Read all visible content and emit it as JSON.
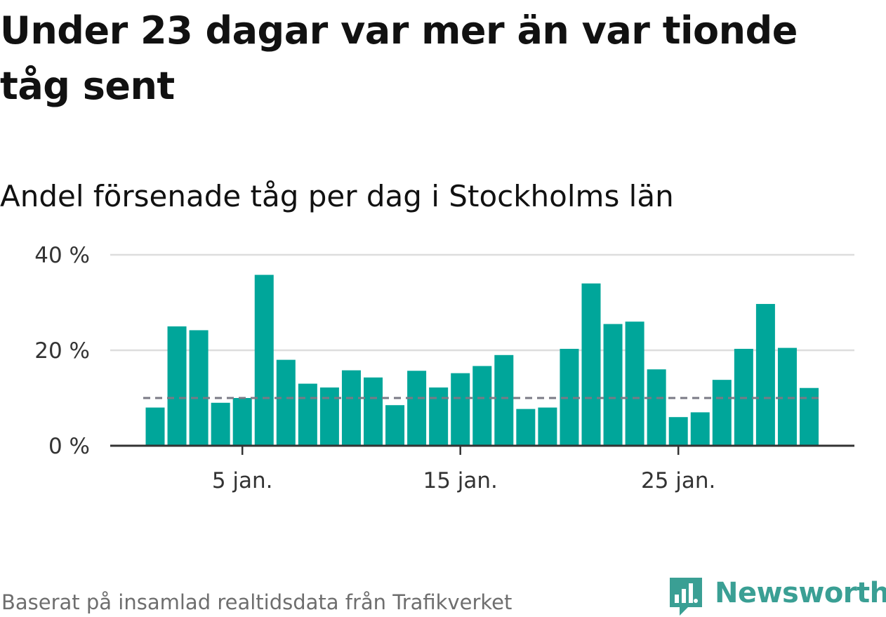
{
  "title": "Under 23 dagar var mer än var tionde tåg sent",
  "subtitle": "Andel försenade tåg per dag i Stockholms län",
  "footer": "Baserat på insamlad realtidsdata från Trafikverket",
  "brand": {
    "name": "Newsworthy",
    "logo_icon": "chart-speech-bubble-icon",
    "color": "#3a9f94"
  },
  "colors": {
    "bar": "#00a69a",
    "reference_line": "#7a7a85",
    "grid": "#dddddd",
    "axis": "#333333"
  },
  "chart_data": {
    "type": "bar",
    "title": "Andel försenade tåg per dag i Stockholms län",
    "xlabel": "",
    "ylabel": "",
    "x": [
      1,
      2,
      3,
      4,
      5,
      6,
      7,
      8,
      9,
      10,
      11,
      12,
      13,
      14,
      15,
      16,
      17,
      18,
      19,
      20,
      21,
      22,
      23,
      24,
      25,
      26,
      27,
      28,
      29,
      30,
      31
    ],
    "values": [
      8,
      25,
      24.2,
      9,
      10,
      35.8,
      18,
      13,
      12.2,
      15.8,
      14.3,
      8.5,
      15.7,
      12.2,
      15.2,
      16.7,
      19,
      7.7,
      8,
      20.3,
      34,
      25.5,
      26,
      16,
      6,
      7,
      13.8,
      20.3,
      29.7,
      20.5,
      12.1
    ],
    "unit": "%",
    "x_ticks": [
      {
        "value": 5,
        "label": "5 jan."
      },
      {
        "value": 15,
        "label": "15 jan."
      },
      {
        "value": 25,
        "label": "25 jan."
      }
    ],
    "y_ticks": [
      {
        "value": 0,
        "label": "0 %"
      },
      {
        "value": 20,
        "label": "20 %"
      },
      {
        "value": 40,
        "label": "40 %"
      }
    ],
    "ylim": [
      0,
      40
    ],
    "reference_line": {
      "value": 10,
      "style": "dashed"
    },
    "grid": true,
    "legend": "none"
  }
}
